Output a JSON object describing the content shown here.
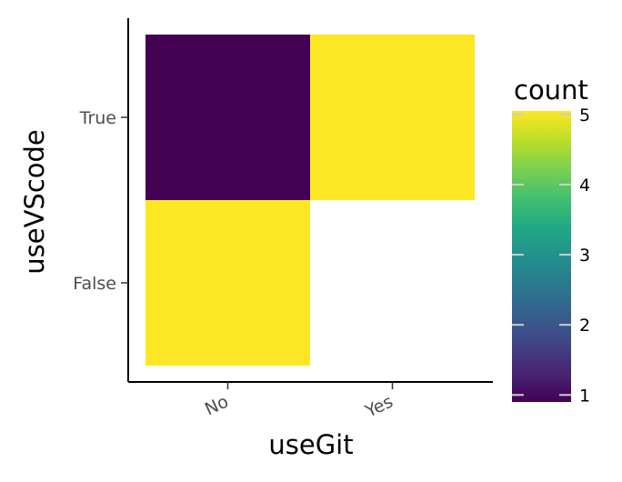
{
  "chart_data": {
    "type": "heatmap",
    "xlabel": "useGit",
    "ylabel": "useVScode",
    "x_categories": [
      "No",
      "Yes"
    ],
    "y_categories": [
      "False",
      "True"
    ],
    "cells": [
      {
        "x": "No",
        "y": "True",
        "value": 1
      },
      {
        "x": "Yes",
        "y": "True",
        "value": 5
      },
      {
        "x": "No",
        "y": "False",
        "value": 5
      }
    ],
    "colorbar": {
      "title": "count",
      "min": 1,
      "max": 5,
      "ticks": [
        1,
        2,
        3,
        4,
        5
      ],
      "colormap": "viridis"
    },
    "colors": {
      "low": "#440154",
      "high": "#fde725"
    },
    "grid": false,
    "legend_position": "right"
  }
}
